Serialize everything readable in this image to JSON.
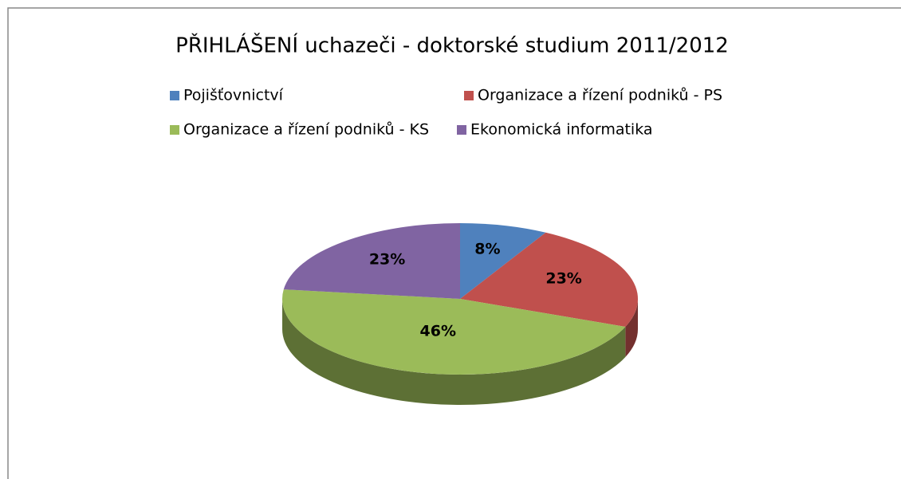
{
  "chart_data": {
    "type": "pie3d",
    "title": "PŘIHLÁŠENÍ uchazeči - doktorské studium 2011/2012",
    "categories": [
      "Pojišťovnictví",
      "Organizace a řízení podniků - PS",
      "Organizace a řízení podniků - KS",
      "Ekonomická informatika"
    ],
    "values": [
      8,
      23,
      46,
      23
    ],
    "value_labels": [
      "8%",
      "23%",
      "46%",
      "23%"
    ],
    "colors": [
      "#4f81bd",
      "#c0504d",
      "#9bbb59",
      "#8064a2"
    ],
    "legend": "top"
  }
}
